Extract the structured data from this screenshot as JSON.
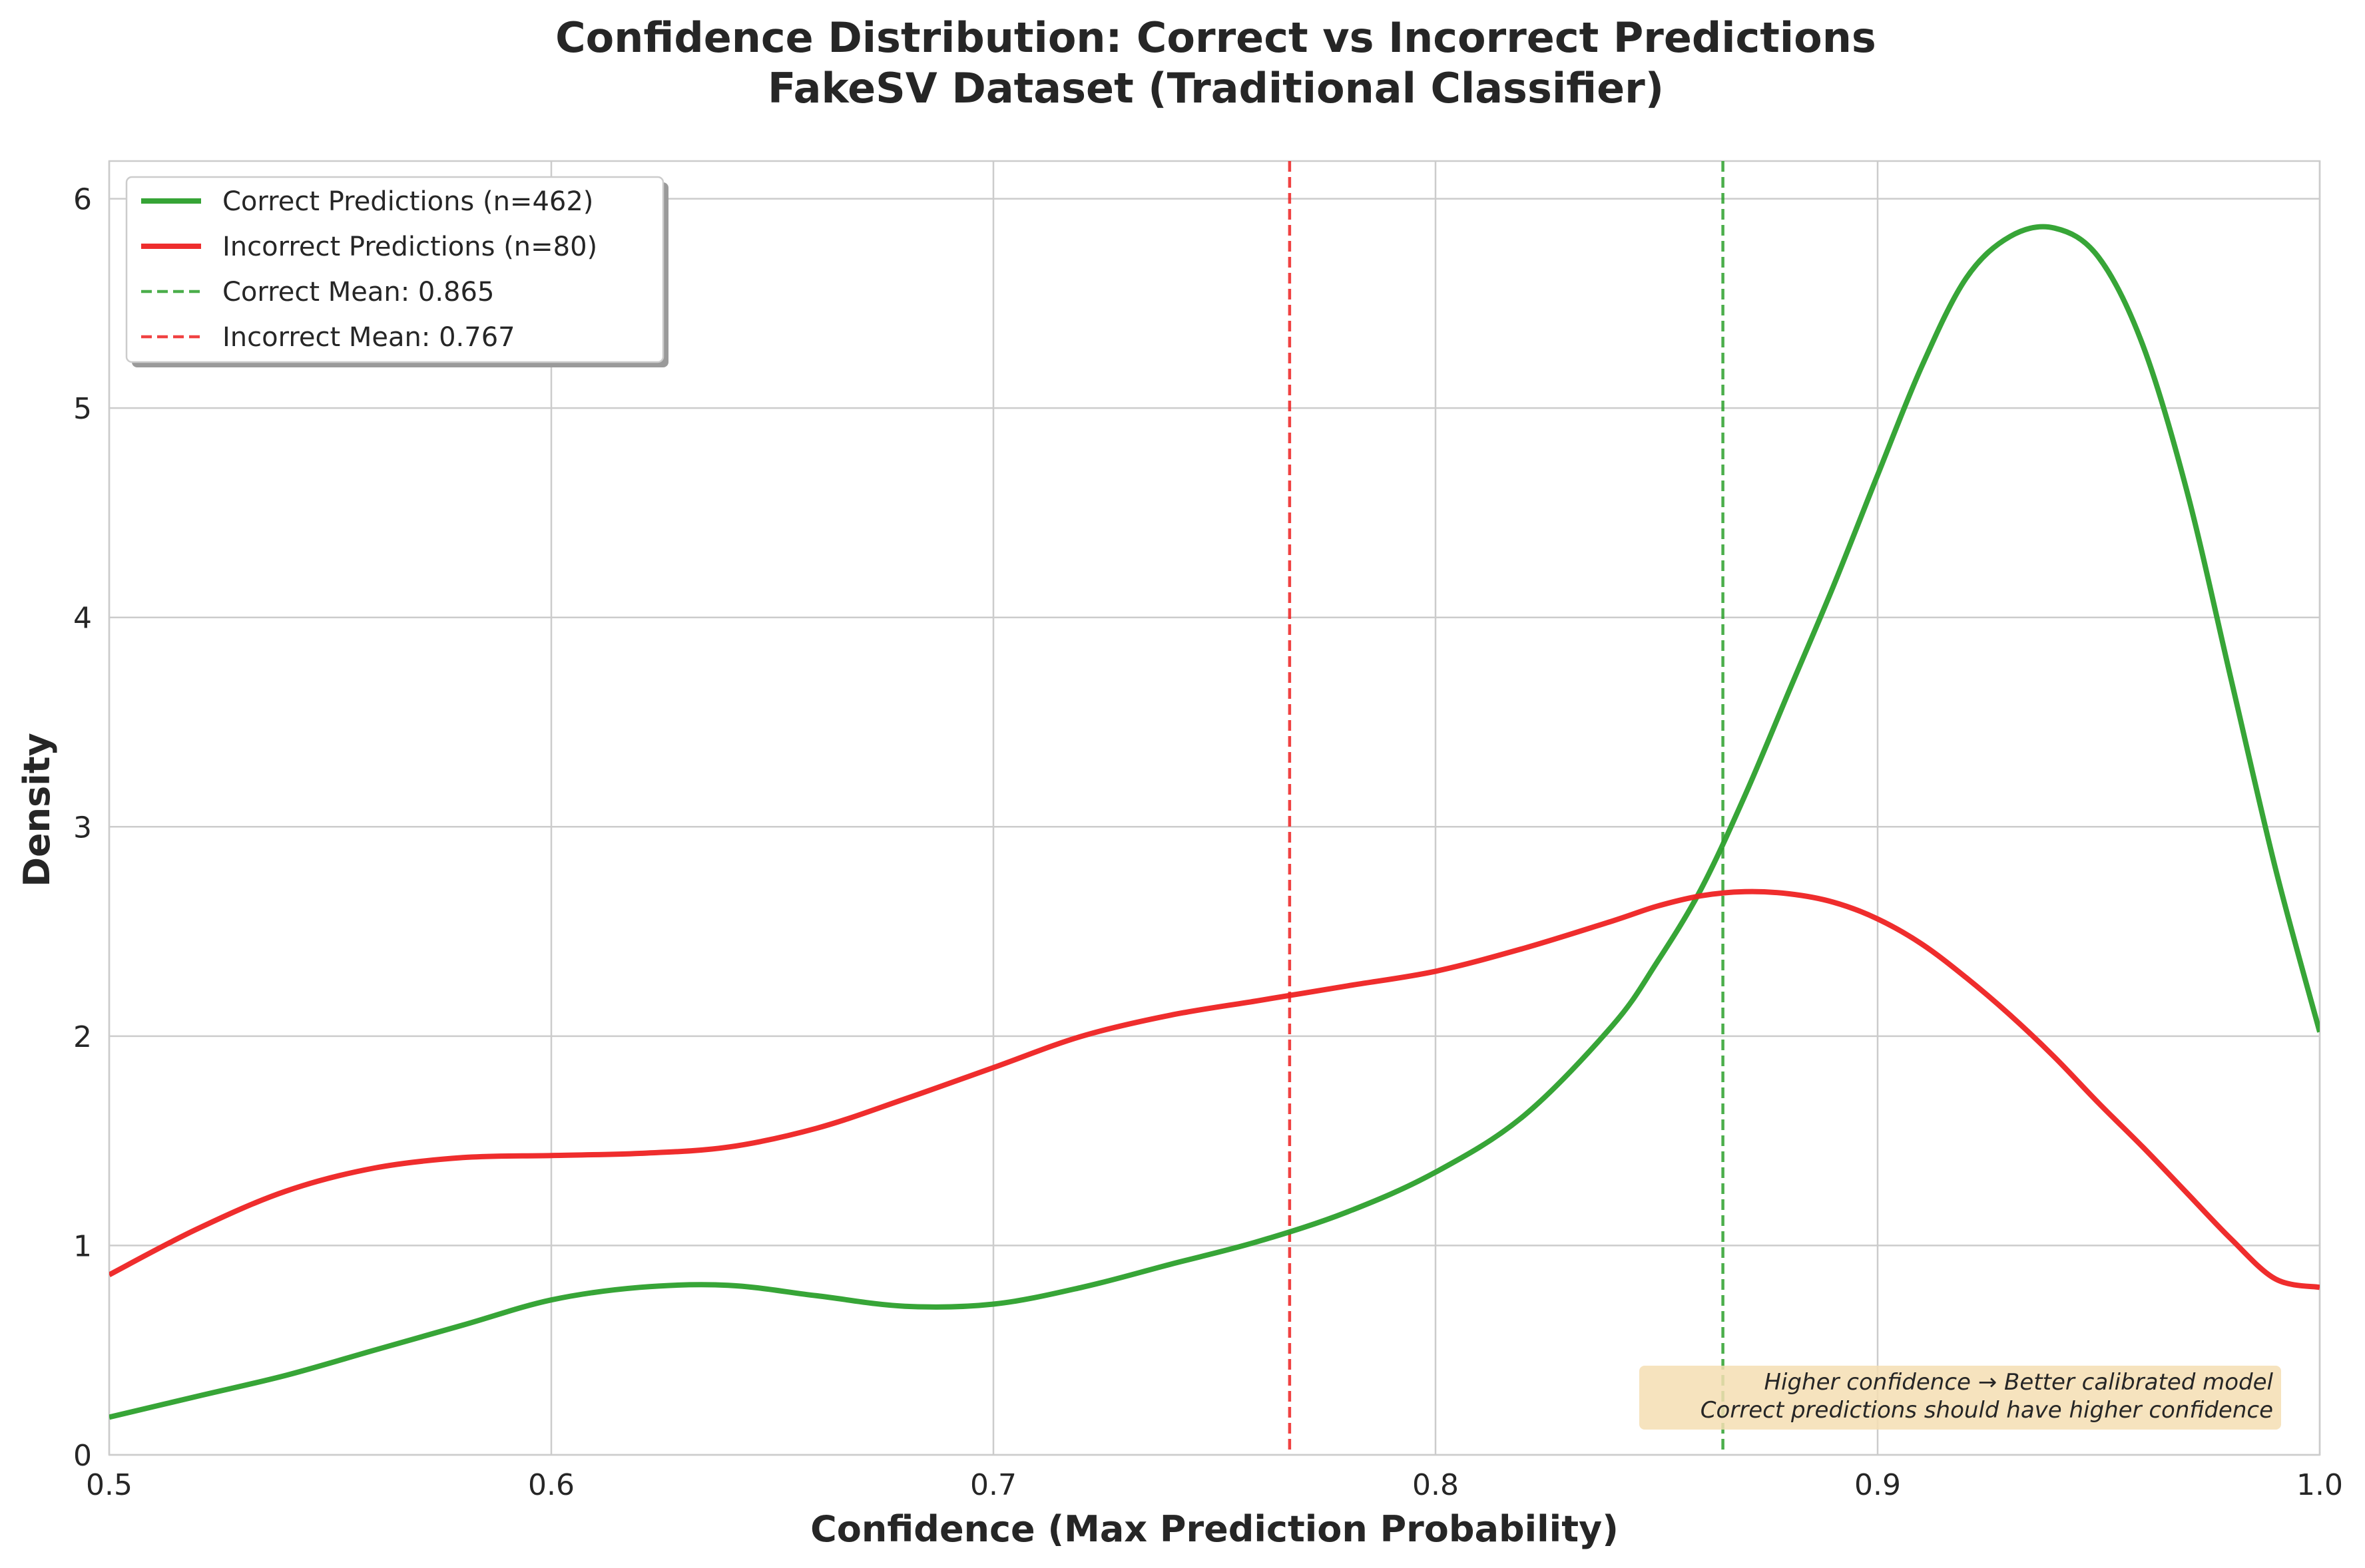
{
  "chart_data": {
    "type": "line",
    "title_line1": "Confidence Distribution: Correct vs Incorrect Predictions",
    "title_line2": "FakeSV Dataset (Traditional Classifier)",
    "xlabel": "Confidence (Max Prediction Probability)",
    "ylabel": "Density",
    "xlim": [
      0.5,
      1.0
    ],
    "ylim": [
      0,
      6.18
    ],
    "xticks": [
      0.5,
      0.6,
      0.7,
      0.8,
      0.9,
      1.0
    ],
    "xtick_labels": [
      "0.5",
      "0.6",
      "0.7",
      "0.8",
      "0.9",
      "1.0"
    ],
    "yticks": [
      0,
      1,
      2,
      3,
      4,
      5,
      6
    ],
    "ytick_labels": [
      "0",
      "1",
      "2",
      "3",
      "4",
      "5",
      "6"
    ],
    "grid": true,
    "legend_position": "top-left",
    "series": [
      {
        "name": "Correct Predictions (n=462)",
        "color": "#2ca02c",
        "x": [
          0.5,
          0.52,
          0.54,
          0.56,
          0.58,
          0.6,
          0.62,
          0.64,
          0.66,
          0.68,
          0.7,
          0.72,
          0.74,
          0.76,
          0.78,
          0.8,
          0.82,
          0.84,
          0.85,
          0.86,
          0.87,
          0.88,
          0.89,
          0.9,
          0.91,
          0.92,
          0.93,
          0.94,
          0.95,
          0.96,
          0.97,
          0.98,
          0.99,
          1.0
        ],
        "y": [
          0.18,
          0.28,
          0.38,
          0.5,
          0.62,
          0.74,
          0.8,
          0.81,
          0.76,
          0.71,
          0.72,
          0.8,
          0.91,
          1.02,
          1.16,
          1.35,
          1.62,
          2.05,
          2.35,
          2.7,
          3.15,
          3.65,
          4.15,
          4.68,
          5.2,
          5.62,
          5.82,
          5.86,
          5.72,
          5.3,
          4.6,
          3.7,
          2.8,
          2.02
        ]
      },
      {
        "name": "Incorrect Predictions (n=80)",
        "color": "#ee2222",
        "x": [
          0.5,
          0.52,
          0.54,
          0.56,
          0.58,
          0.6,
          0.62,
          0.64,
          0.66,
          0.68,
          0.7,
          0.72,
          0.74,
          0.76,
          0.78,
          0.8,
          0.82,
          0.84,
          0.85,
          0.86,
          0.87,
          0.88,
          0.89,
          0.9,
          0.91,
          0.92,
          0.93,
          0.94,
          0.95,
          0.96,
          0.97,
          0.98,
          0.99,
          1.0
        ],
        "y": [
          0.86,
          1.08,
          1.26,
          1.37,
          1.42,
          1.43,
          1.44,
          1.47,
          1.56,
          1.7,
          1.85,
          2.0,
          2.1,
          2.17,
          2.24,
          2.31,
          2.42,
          2.55,
          2.62,
          2.67,
          2.69,
          2.68,
          2.64,
          2.56,
          2.44,
          2.28,
          2.1,
          1.9,
          1.68,
          1.47,
          1.25,
          1.03,
          0.84,
          0.8
        ]
      }
    ],
    "vlines": [
      {
        "name": "Correct Mean: 0.865",
        "x": 0.865,
        "color": "#2ca02c"
      },
      {
        "name": "Incorrect Mean: 0.767",
        "x": 0.767,
        "color": "#ee2222"
      }
    ],
    "annotation": {
      "line1": "Higher confidence → Better calibrated model",
      "line2": "Correct predictions should have higher confidence",
      "background": "#f5deb3"
    }
  }
}
